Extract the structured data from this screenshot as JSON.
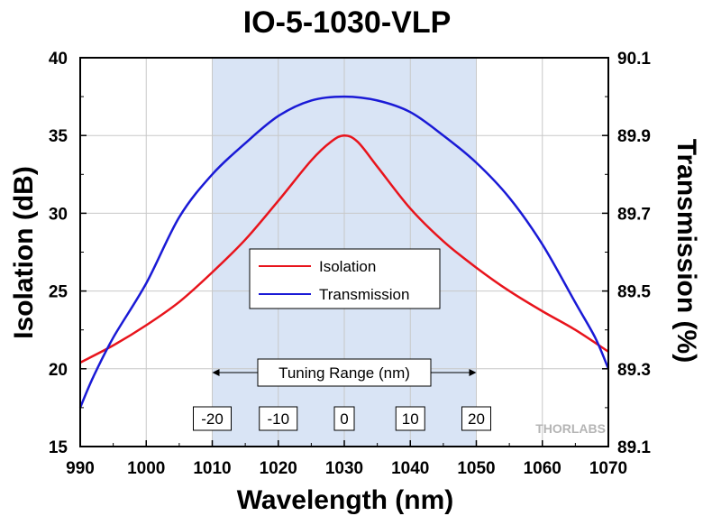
{
  "chart_data": {
    "type": "line",
    "title": "IO-5-1030-VLP",
    "xlabel": "Wavelength (nm)",
    "ylabel": "Isolation (dB)",
    "y2label": "Transmission (%)",
    "xlim": [
      990,
      1070
    ],
    "ylim": [
      15,
      40
    ],
    "y2lim": [
      89.1,
      90.1
    ],
    "x_ticks": [
      990,
      1000,
      1010,
      1020,
      1030,
      1040,
      1050,
      1060,
      1070
    ],
    "y_ticks": [
      15,
      20,
      25,
      30,
      35,
      40
    ],
    "y2_ticks": [
      "89.1",
      "89.3",
      "89.5",
      "89.7",
      "89.9",
      "90.1"
    ],
    "grid": true,
    "shaded_region": {
      "x_start": 1010,
      "x_end": 1050,
      "color": "#d9e4f5"
    },
    "tuning_range": {
      "label": "Tuning Range (nm)",
      "ticks": [
        {
          "x": 1010,
          "label": "-20"
        },
        {
          "x": 1020,
          "label": "-10"
        },
        {
          "x": 1030,
          "label": "0"
        },
        {
          "x": 1040,
          "label": "10"
        },
        {
          "x": 1050,
          "label": "20"
        }
      ]
    },
    "legend_position": "center",
    "series": [
      {
        "name": "Isolation",
        "axis": "left",
        "color": "#e8141c",
        "x": [
          990,
          995,
          1000,
          1005,
          1010,
          1015,
          1020,
          1025,
          1028,
          1030,
          1032,
          1035,
          1040,
          1045,
          1050,
          1055,
          1060,
          1065,
          1070
        ],
        "y": [
          20.4,
          21.5,
          22.8,
          24.3,
          26.2,
          28.3,
          30.8,
          33.4,
          34.6,
          35.0,
          34.6,
          33.0,
          30.3,
          28.2,
          26.5,
          25.0,
          23.7,
          22.5,
          21.1
        ]
      },
      {
        "name": "Transmission",
        "axis": "right",
        "color": "#1a1ad6",
        "x": [
          990,
          992,
          995,
          1000,
          1005,
          1010,
          1015,
          1020,
          1025,
          1030,
          1035,
          1040,
          1045,
          1050,
          1055,
          1060,
          1065,
          1068,
          1070
        ],
        "y": [
          89.2,
          89.28,
          89.38,
          89.52,
          89.69,
          89.8,
          89.88,
          89.95,
          89.99,
          90.0,
          89.99,
          89.96,
          89.9,
          89.83,
          89.74,
          89.62,
          89.47,
          89.38,
          89.3
        ]
      }
    ]
  },
  "watermark": "THORLABS",
  "colors": {
    "background": "#ffffff",
    "grid": "#c8c8c8",
    "shade": "#d9e4f5"
  }
}
